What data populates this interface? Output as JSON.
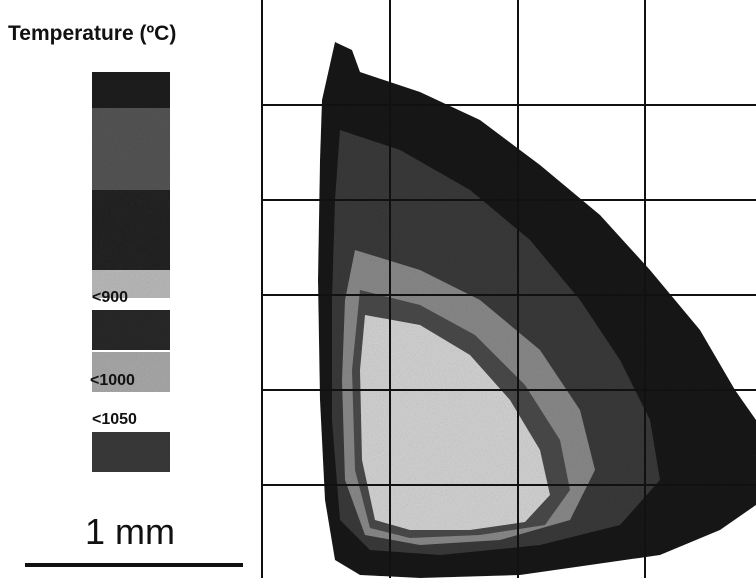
{
  "title": "Temperature (ºC)",
  "legend_labels": [
    "<900",
    "<1000",
    "<1050"
  ],
  "scale_bar": "1 mm"
}
